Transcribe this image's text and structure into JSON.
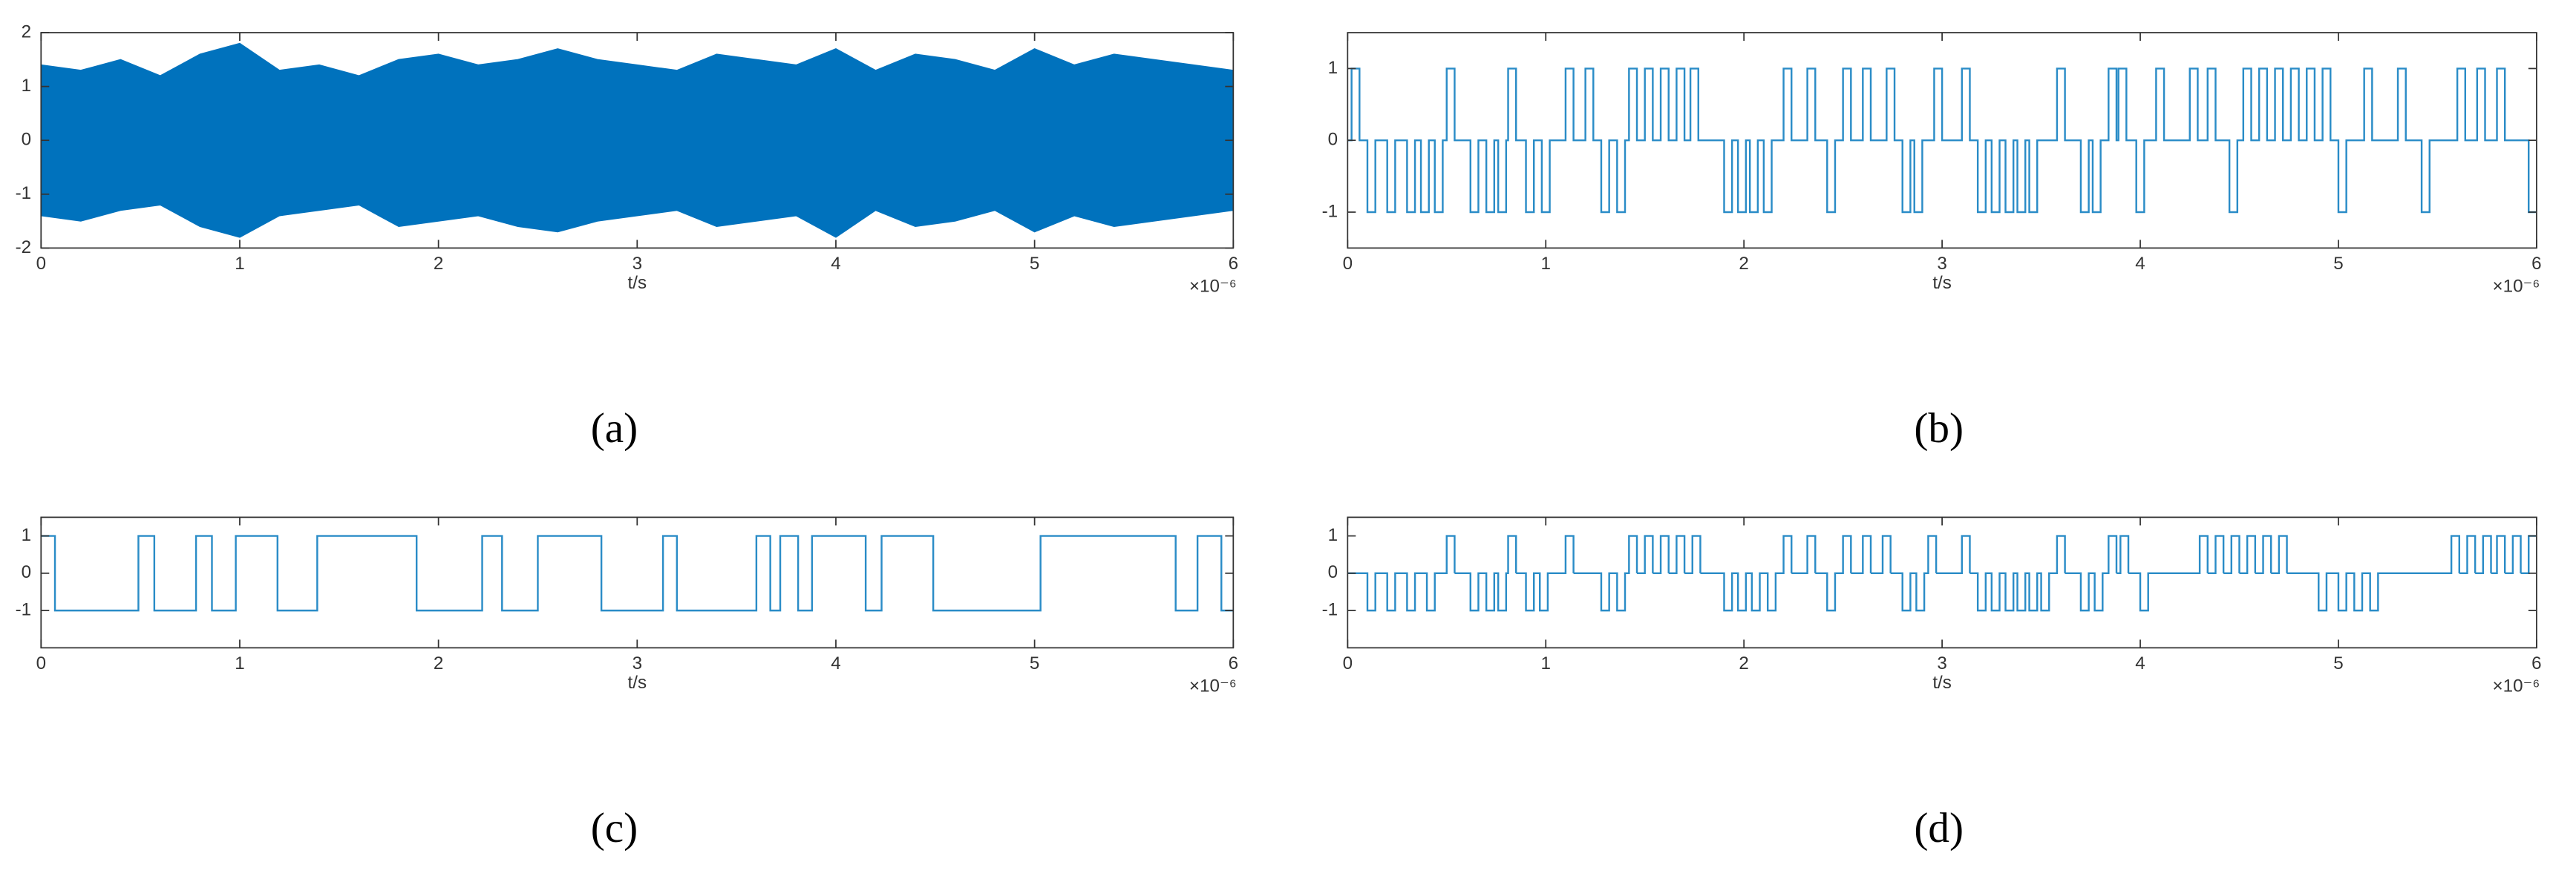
{
  "chart_data": [
    {
      "type": "band",
      "caption": "(a)",
      "x_label": "t/s",
      "x_exponent_label": "×10⁻⁶",
      "color": "#0072bd",
      "xlim": [
        0,
        6
      ],
      "xticks": [
        0,
        1,
        2,
        3,
        4,
        5,
        6
      ],
      "ylim": [
        -2,
        2
      ],
      "yticks": [
        -2,
        -1,
        0,
        1,
        2
      ],
      "x": [
        0,
        0.2,
        0.4,
        0.6,
        0.8,
        1,
        1.2,
        1.4,
        1.6,
        1.8,
        2,
        2.2,
        2.4,
        2.6,
        2.8,
        3,
        3.2,
        3.4,
        3.6,
        3.8,
        4,
        4.2,
        4.4,
        4.6,
        4.8,
        5,
        5.2,
        5.4,
        5.6,
        5.8,
        6
      ],
      "upper": [
        1.4,
        1.3,
        1.5,
        1.2,
        1.6,
        1.8,
        1.3,
        1.4,
        1.2,
        1.5,
        1.6,
        1.4,
        1.5,
        1.7,
        1.5,
        1.4,
        1.3,
        1.6,
        1.5,
        1.4,
        1.7,
        1.3,
        1.6,
        1.5,
        1.3,
        1.7,
        1.4,
        1.6,
        1.5,
        1.4,
        1.3
      ],
      "lower": [
        -1.4,
        -1.5,
        -1.3,
        -1.2,
        -1.6,
        -1.8,
        -1.4,
        -1.3,
        -1.2,
        -1.6,
        -1.5,
        -1.4,
        -1.6,
        -1.7,
        -1.5,
        -1.4,
        -1.3,
        -1.6,
        -1.5,
        -1.4,
        -1.8,
        -1.3,
        -1.6,
        -1.5,
        -1.3,
        -1.7,
        -1.4,
        -1.6,
        -1.5,
        -1.4,
        -1.3
      ]
    },
    {
      "type": "step",
      "caption": "(b)",
      "x_label": "t/s",
      "x_exponent_label": "×10⁻⁶",
      "color": "#2a8cc7",
      "xlim": [
        0,
        6
      ],
      "xticks": [
        0,
        1,
        2,
        3,
        4,
        5,
        6
      ],
      "ylim": [
        -1.5,
        1.5
      ],
      "yticks": [
        -1,
        0,
        1
      ],
      "x": [
        0,
        0.02,
        0.06,
        0.1,
        0.14,
        0.2,
        0.24,
        0.3,
        0.34,
        0.37,
        0.41,
        0.44,
        0.48,
        0.5,
        0.54,
        0.62,
        0.66,
        0.7,
        0.74,
        0.76,
        0.8,
        0.81,
        0.85,
        0.9,
        0.94,
        0.98,
        1.02,
        1.1,
        1.14,
        1.2,
        1.24,
        1.28,
        1.32,
        1.36,
        1.4,
        1.42,
        1.46,
        1.5,
        1.54,
        1.58,
        1.62,
        1.66,
        1.7,
        1.73,
        1.77,
        1.9,
        1.94,
        1.97,
        2.01,
        2.03,
        2.07,
        2.1,
        2.14,
        2.2,
        2.24,
        2.32,
        2.36,
        2.42,
        2.46,
        2.5,
        2.54,
        2.6,
        2.64,
        2.72,
        2.76,
        2.8,
        2.84,
        2.86,
        2.9,
        2.96,
        3,
        3.1,
        3.14,
        3.18,
        3.22,
        3.25,
        3.29,
        3.32,
        3.36,
        3.38,
        3.42,
        3.44,
        3.48,
        3.58,
        3.62,
        3.7,
        3.74,
        3.76,
        3.8,
        3.84,
        3.88,
        3.89,
        3.93,
        3.98,
        4.02,
        4.08,
        4.12,
        4.25,
        4.29,
        4.34,
        4.38,
        4.45,
        4.49,
        4.52,
        4.56,
        4.6,
        4.64,
        4.68,
        4.72,
        4.76,
        4.8,
        4.84,
        4.88,
        4.92,
        4.96,
        5,
        5.04,
        5.13,
        5.17,
        5.3,
        5.34,
        5.42,
        5.46,
        5.6,
        5.64,
        5.7,
        5.74,
        5.8,
        5.84,
        5.96
      ],
      "values": [
        0,
        1,
        0,
        -1,
        0,
        -1,
        0,
        -1,
        0,
        -1,
        0,
        -1,
        0,
        1,
        0,
        -1,
        0,
        -1,
        0,
        -1,
        0,
        1,
        0,
        -1,
        0,
        -1,
        0,
        1,
        0,
        1,
        0,
        -1,
        0,
        -1,
        0,
        1,
        0,
        1,
        0,
        1,
        0,
        1,
        0,
        1,
        0,
        -1,
        0,
        -1,
        0,
        -1,
        0,
        -1,
        0,
        1,
        0,
        1,
        0,
        -1,
        0,
        1,
        0,
        1,
        0,
        1,
        0,
        -1,
        0,
        -1,
        0,
        1,
        0,
        1,
        0,
        -1,
        0,
        -1,
        0,
        -1,
        0,
        -1,
        0,
        -1,
        0,
        1,
        0,
        -1,
        0,
        -1,
        0,
        1,
        0,
        1,
        0,
        -1,
        0,
        1,
        0,
        1,
        0,
        1,
        0,
        -1,
        0,
        1,
        0,
        1,
        0,
        1,
        0,
        1,
        0,
        1,
        0,
        1,
        0,
        -1,
        0,
        1,
        0,
        1,
        0,
        -1,
        0,
        1,
        0,
        1,
        0,
        1,
        0,
        -1
      ]
    },
    {
      "type": "step",
      "caption": "(c)",
      "x_label": "t/s",
      "x_exponent_label": "×10⁻⁶",
      "color": "#2a8cc7",
      "xlim": [
        0,
        6
      ],
      "xticks": [
        0,
        1,
        2,
        3,
        4,
        5,
        6
      ],
      "ylim": [
        -2,
        1.5
      ],
      "yticks": [
        -1,
        0,
        1
      ],
      "x": [
        0,
        0.07,
        0.49,
        0.57,
        0.78,
        0.86,
        0.98,
        1.19,
        1.39,
        1.89,
        2.22,
        2.32,
        2.5,
        2.82,
        3.13,
        3.2,
        3.6,
        3.67,
        3.72,
        3.81,
        3.88,
        4.15,
        4.23,
        4.49,
        5.03,
        5.71,
        5.82,
        5.94
      ],
      "values": [
        1,
        -1,
        1,
        -1,
        1,
        -1,
        1,
        -1,
        1,
        -1,
        1,
        -1,
        1,
        -1,
        1,
        -1,
        1,
        -1,
        1,
        -1,
        1,
        -1,
        1,
        -1,
        1,
        -1,
        1,
        -1
      ]
    },
    {
      "type": "step",
      "caption": "(d)",
      "x_label": "t/s",
      "x_exponent_label": "×10⁻⁶",
      "color": "#2a8cc7",
      "xlim": [
        0,
        6
      ],
      "xticks": [
        0,
        1,
        2,
        3,
        4,
        5,
        6
      ],
      "ylim": [
        -2,
        1.5
      ],
      "yticks": [
        -1,
        0,
        1
      ],
      "x": [
        0,
        0.1,
        0.14,
        0.2,
        0.24,
        0.3,
        0.34,
        0.4,
        0.44,
        0.5,
        0.54,
        0.62,
        0.66,
        0.7,
        0.74,
        0.76,
        0.8,
        0.81,
        0.85,
        0.9,
        0.94,
        0.97,
        1.01,
        1.1,
        1.14,
        1.28,
        1.32,
        1.36,
        1.4,
        1.42,
        1.46,
        1.5,
        1.54,
        1.58,
        1.62,
        1.66,
        1.7,
        1.74,
        1.78,
        1.9,
        1.94,
        1.97,
        2.01,
        2.04,
        2.08,
        2.12,
        2.16,
        2.2,
        2.24,
        2.32,
        2.36,
        2.42,
        2.46,
        2.5,
        2.54,
        2.6,
        2.64,
        2.7,
        2.74,
        2.8,
        2.84,
        2.87,
        2.91,
        2.93,
        2.97,
        3.1,
        3.14,
        3.18,
        3.22,
        3.25,
        3.29,
        3.32,
        3.36,
        3.38,
        3.42,
        3.44,
        3.48,
        3.5,
        3.54,
        3.58,
        3.62,
        3.7,
        3.74,
        3.77,
        3.81,
        3.84,
        3.88,
        3.9,
        3.94,
        4,
        4.04,
        4.3,
        4.34,
        4.38,
        4.42,
        4.46,
        4.5,
        4.54,
        4.58,
        4.62,
        4.66,
        4.7,
        4.74,
        4.9,
        4.94,
        5,
        5.04,
        5.08,
        5.12,
        5.16,
        5.2,
        5.57,
        5.61,
        5.65,
        5.69,
        5.73,
        5.77,
        5.8,
        5.84,
        5.88,
        5.92,
        5.96
      ],
      "values": [
        0,
        -1,
        0,
        -1,
        0,
        -1,
        0,
        -1,
        0,
        1,
        0,
        -1,
        0,
        -1,
        0,
        -1,
        0,
        1,
        0,
        -1,
        0,
        -1,
        0,
        1,
        0,
        -1,
        0,
        -1,
        0,
        1,
        0,
        1,
        0,
        1,
        0,
        1,
        0,
        1,
        0,
        -1,
        0,
        -1,
        0,
        -1,
        0,
        -1,
        0,
        1,
        0,
        1,
        0,
        -1,
        0,
        1,
        0,
        1,
        0,
        1,
        0,
        -1,
        0,
        -1,
        0,
        1,
        0,
        1,
        0,
        -1,
        0,
        -1,
        0,
        -1,
        0,
        -1,
        0,
        -1,
        0,
        -1,
        0,
        1,
        0,
        -1,
        0,
        -1,
        0,
        1,
        0,
        1,
        0,
        -1,
        0,
        1,
        0,
        1,
        0,
        1,
        0,
        1,
        0,
        1,
        0,
        1,
        0,
        -1,
        0,
        -1,
        0,
        -1,
        0,
        -1,
        0,
        1,
        0,
        1,
        0,
        1,
        0,
        1,
        0,
        1,
        0,
        1
      ]
    }
  ]
}
